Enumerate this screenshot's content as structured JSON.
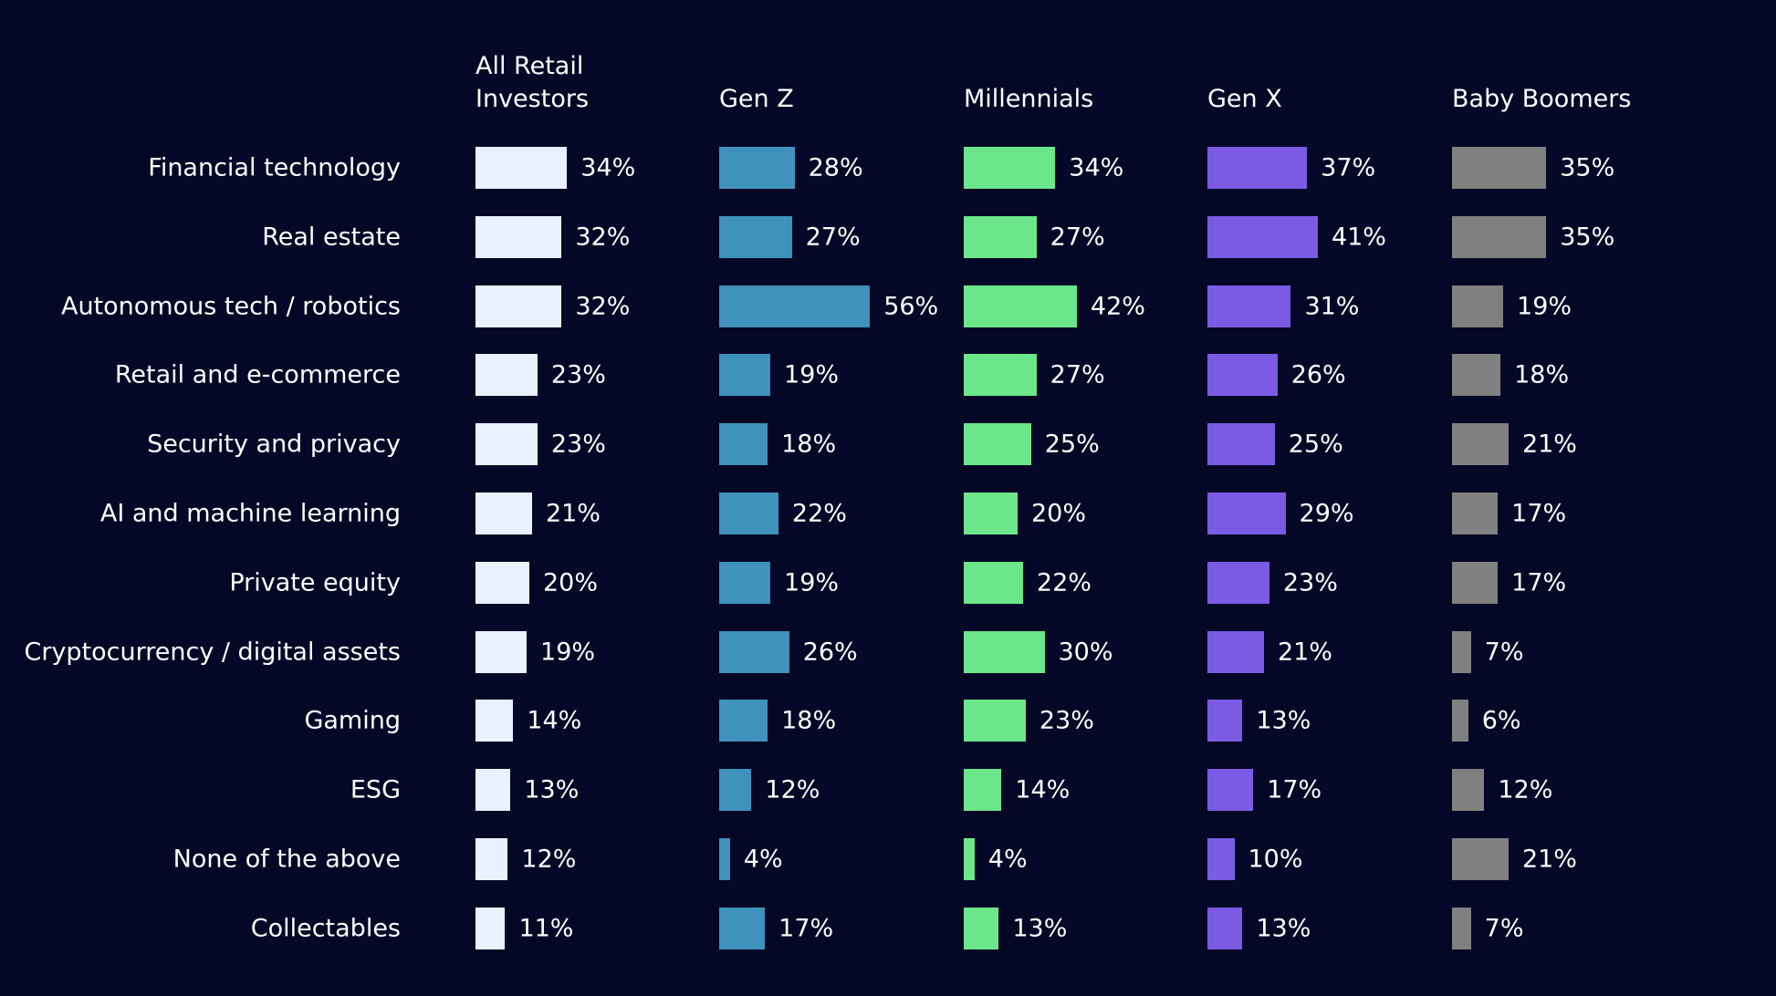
{
  "chart_data": {
    "type": "bar",
    "orientation": "horizontal",
    "layout": "small-multiples",
    "categories": [
      "Financial technology",
      "Real estate",
      "Autonomous tech / robotics",
      "Retail and e-commerce",
      "Security and privacy",
      "AI and machine learning",
      "Private equity",
      "Cryptocurrency / digital assets",
      "Gaming",
      "ESG",
      "None of the above",
      "Collectables"
    ],
    "unit": "%",
    "series": [
      {
        "name": "All Retail\nInvestors",
        "color": "#e8f2ff",
        "values": [
          34,
          32,
          32,
          23,
          23,
          21,
          20,
          19,
          14,
          13,
          12,
          11
        ]
      },
      {
        "name": "Gen Z",
        "color": "#3f92bb",
        "values": [
          28,
          27,
          56,
          19,
          18,
          22,
          19,
          26,
          18,
          12,
          4,
          17
        ]
      },
      {
        "name": "Millennials",
        "color": "#6ce68a",
        "values": [
          34,
          27,
          42,
          27,
          25,
          20,
          22,
          30,
          23,
          14,
          4,
          13
        ]
      },
      {
        "name": "Gen X",
        "color": "#7b5be4",
        "values": [
          37,
          41,
          31,
          26,
          25,
          29,
          23,
          21,
          13,
          17,
          10,
          13
        ]
      },
      {
        "name": "Baby Boomers",
        "color": "#808080",
        "values": [
          35,
          35,
          19,
          18,
          21,
          17,
          17,
          7,
          6,
          12,
          21,
          7
        ]
      }
    ],
    "background": "#050726",
    "grid": false
  }
}
